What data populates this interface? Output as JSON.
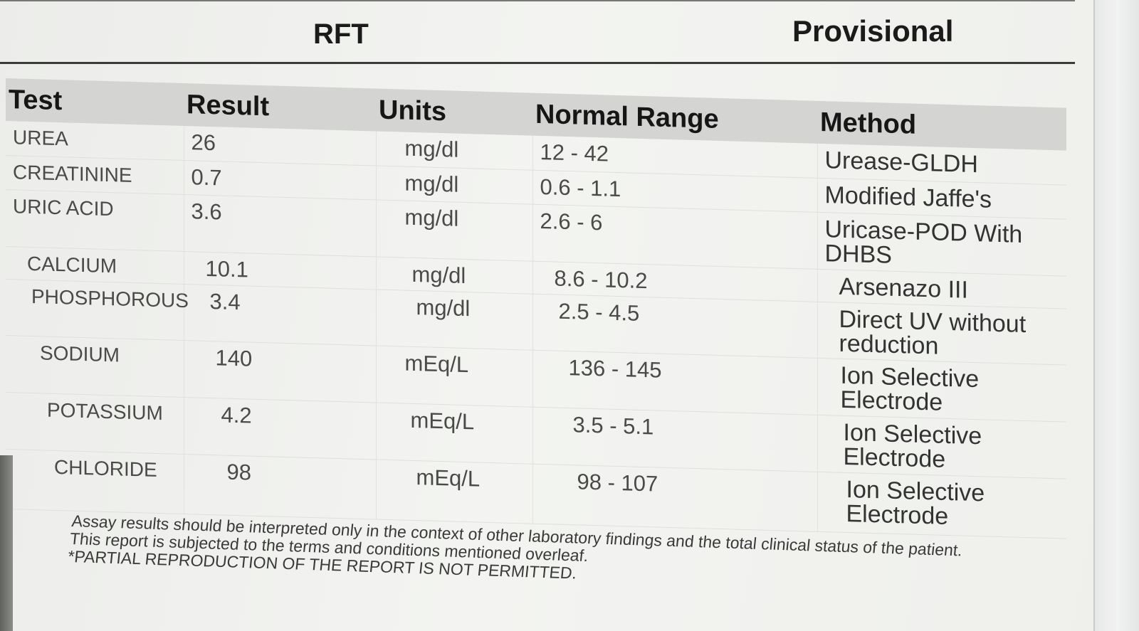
{
  "header": {
    "report_title": "RFT",
    "status": "Provisional"
  },
  "table": {
    "columns": [
      "Test",
      "Result",
      "Units",
      "Normal Range",
      "Method"
    ],
    "rows": [
      {
        "test": "UREA",
        "result": "26",
        "units": "mg/dl",
        "range": "12 - 42",
        "method": "Urease-GLDH"
      },
      {
        "test": "CREATININE",
        "result": "0.7",
        "units": "mg/dl",
        "range": "0.6 - 1.1",
        "method": "Modified Jaffe's"
      },
      {
        "test": "URIC ACID",
        "result": "3.6",
        "units": "mg/dl",
        "range": "2.6 - 6",
        "method": "Uricase-POD With DHBS"
      },
      {
        "test": "CALCIUM",
        "result": "10.1",
        "units": "mg/dl",
        "range": "8.6 - 10.2",
        "method": "Arsenazo III"
      },
      {
        "test": "PHOSPHOROUS",
        "result": "3.4",
        "units": "mg/dl",
        "range": "2.5 - 4.5",
        "method": "Direct UV without reduction"
      },
      {
        "test": "SODIUM",
        "result": "140",
        "units": "mEq/L",
        "range": "136 - 145",
        "method": "Ion Selective Electrode"
      },
      {
        "test": "POTASSIUM",
        "result": "4.2",
        "units": "mEq/L",
        "range": "3.5 - 5.1",
        "method": "Ion Selective Electrode"
      },
      {
        "test": "CHLORIDE",
        "result": "98",
        "units": "mEq/L",
        "range": "98 - 107",
        "method": "Ion Selective Electrode"
      }
    ]
  },
  "footer": {
    "line1": "Assay results should be interpreted only in the context of other laboratory findings and the total clinical status of the patient.",
    "line2": "This report is subjected to the terms and conditions mentioned overleaf.",
    "line3": "*PARTIAL REPRODUCTION OF THE REPORT IS NOT PERMITTED."
  }
}
